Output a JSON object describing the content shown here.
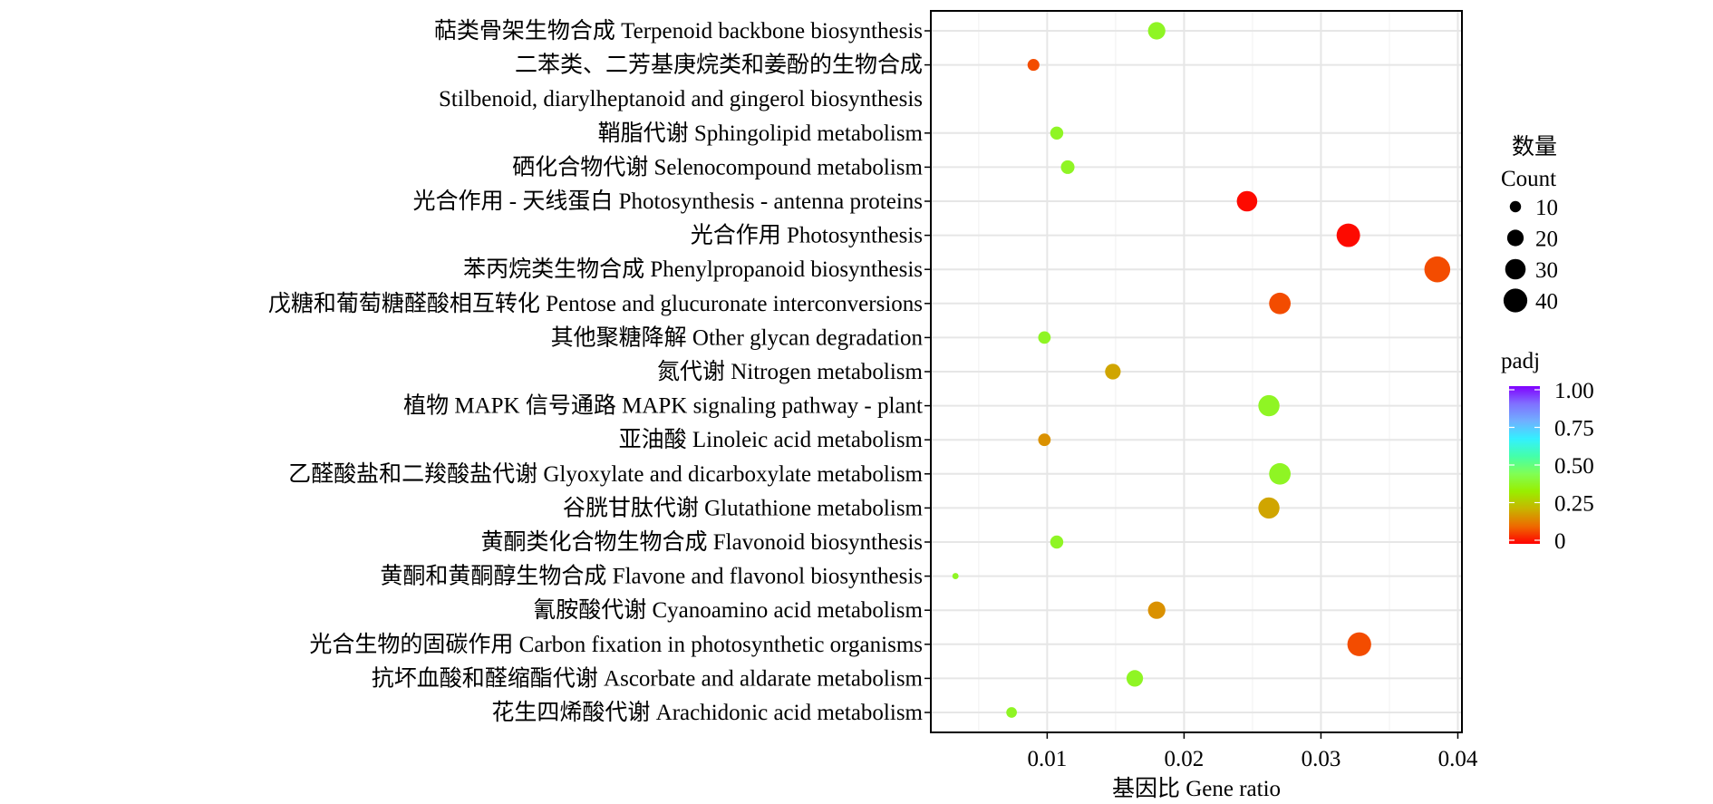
{
  "chart_data": {
    "type": "scatter",
    "subtype": "bubble",
    "xlabel": "基因比 Gene ratio",
    "ylabel": "",
    "xlim": [
      0.0015,
      0.0403
    ],
    "x_ticks": [
      0.01,
      0.02,
      0.03,
      0.04
    ],
    "x_tick_labels": [
      "0.01",
      "0.02",
      "0.03",
      "0.04"
    ],
    "grid": true,
    "size_legend": {
      "title_cn": "数量",
      "title_en": "Count",
      "values": [
        10,
        20,
        30,
        40
      ],
      "labels": [
        "10",
        "20",
        "30",
        "40"
      ],
      "position": "right"
    },
    "color_legend": {
      "title": "padj",
      "range": [
        0,
        1
      ],
      "ticks": [
        1.0,
        0.75,
        0.5,
        0.25,
        0
      ],
      "tick_labels": [
        "1.00",
        "0.75",
        "0.50",
        "0.25",
        "0"
      ],
      "position": "right"
    },
    "points": [
      {
        "label": "萜类骨架生物合成 Terpenoid backbone biosynthesis",
        "gene_ratio": 0.018,
        "count": 22,
        "padj": 0.38
      },
      {
        "label": "二苯类、二芳基庚烷类和姜酚的生物合成",
        "label2": "Stilbenoid, diarylheptanoid and gingerol biosynthesis",
        "gene_ratio": 0.009,
        "count": 11,
        "padj": 0.08
      },
      {
        "label": "鞘脂代谢 Sphingolipid metabolism",
        "gene_ratio": 0.0107,
        "count": 13,
        "padj": 0.38
      },
      {
        "label": "硒化合物代谢 Selenocompound metabolism",
        "gene_ratio": 0.0115,
        "count": 14,
        "padj": 0.38
      },
      {
        "label": "光合作用 - 天线蛋白 Photosynthesis - antenna proteins",
        "gene_ratio": 0.0246,
        "count": 30,
        "padj": 0.01
      },
      {
        "label": "光合作用 Photosynthesis",
        "gene_ratio": 0.032,
        "count": 39,
        "padj": 0.01
      },
      {
        "label": "苯丙烷类生物合成 Phenylpropanoid biosynthesis",
        "gene_ratio": 0.0385,
        "count": 47,
        "padj": 0.08
      },
      {
        "label": "戊糖和葡萄糖醛酸相互转化 Pentose and glucuronate interconversions",
        "gene_ratio": 0.027,
        "count": 33,
        "padj": 0.08
      },
      {
        "label": "其他聚糖降解 Other glycan degradation",
        "gene_ratio": 0.0098,
        "count": 12,
        "padj": 0.38
      },
      {
        "label": "氮代谢 Nitrogen metabolism",
        "gene_ratio": 0.0148,
        "count": 18,
        "padj": 0.2
      },
      {
        "label": "植物 MAPK 信号通路 MAPK signaling pathway - plant",
        "gene_ratio": 0.0262,
        "count": 32,
        "padj": 0.38
      },
      {
        "label": "亚油酸 Linoleic acid metabolism",
        "gene_ratio": 0.0098,
        "count": 12,
        "padj": 0.17
      },
      {
        "label": "乙醛酸盐和二羧酸盐代谢 Glyoxylate and dicarboxylate metabolism",
        "gene_ratio": 0.027,
        "count": 33,
        "padj": 0.38
      },
      {
        "label": "谷胱甘肽代谢 Glutathione metabolism",
        "gene_ratio": 0.0262,
        "count": 32,
        "padj": 0.2
      },
      {
        "label": "黄酮类化合物生物合成 Flavonoid biosynthesis",
        "gene_ratio": 0.0107,
        "count": 13,
        "padj": 0.38
      },
      {
        "label": "黄酮和黄酮醇生物合成 Flavone and flavonol biosynthesis",
        "gene_ratio": 0.0033,
        "count": 4,
        "padj": 0.38
      },
      {
        "label": "氰胺酸代谢 Cyanoamino acid metabolism",
        "gene_ratio": 0.018,
        "count": 22,
        "padj": 0.17
      },
      {
        "label": "光合生物的固碳作用 Carbon fixation in photosynthetic organisms",
        "gene_ratio": 0.0328,
        "count": 40,
        "padj": 0.08
      },
      {
        "label": "抗坏血酸和醛缩酯代谢 Ascorbate and aldarate metabolism",
        "gene_ratio": 0.0164,
        "count": 20,
        "padj": 0.38
      },
      {
        "label": "花生四烯酸代谢 Arachidonic acid metabolism",
        "gene_ratio": 0.0074,
        "count": 9,
        "padj": 0.38
      }
    ],
    "colors": {
      "scale": [
        "#ff0000",
        "#ee6a00",
        "#c8b400",
        "#99ee00",
        "#80ff55",
        "#44ffaa",
        "#33f0ff",
        "#70b0ff",
        "#8070ff",
        "#8000ff"
      ],
      "grid": "#ebebeb",
      "axis": "#000000"
    }
  }
}
